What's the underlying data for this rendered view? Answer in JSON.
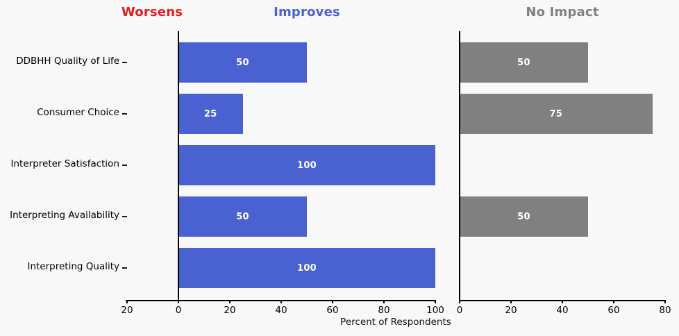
{
  "chart_data": {
    "type": "bar",
    "orientation": "horizontal",
    "xlabel": "Percent of Respondents",
    "background": "#f8f8f8",
    "bar_label_color": "#ffffff",
    "categories": [
      "DDBHH Quality of Life",
      "Consumer Choice",
      "Interpreter Satisfaction",
      "Interpreting Availability",
      "Interpreting Quality"
    ],
    "panels": [
      {
        "name": "change-panel",
        "headers": [
          {
            "label": "Worsens",
            "color": "#e01d1d"
          },
          {
            "label": "Improves",
            "color": "#4a61d2"
          }
        ],
        "axis_range": [
          -20,
          100
        ],
        "ticks": [
          -20,
          0,
          20,
          40,
          60,
          80,
          100
        ],
        "tick_labels": [
          "20",
          "0",
          "20",
          "40",
          "60",
          "80",
          "100"
        ]
      },
      {
        "name": "no-impact-panel",
        "headers": [
          {
            "label": "No Impact",
            "color": "#808080"
          }
        ],
        "axis_range": [
          0,
          80
        ],
        "ticks": [
          0,
          20,
          40,
          60,
          80
        ],
        "tick_labels": [
          "0",
          "20",
          "40",
          "60",
          "80"
        ]
      }
    ],
    "series": [
      {
        "name": "Improves",
        "panel": 0,
        "direction": "positive",
        "color": "#4a61d2",
        "values": [
          50,
          25,
          100,
          50,
          100
        ]
      },
      {
        "name": "Worsens",
        "panel": 0,
        "direction": "negative",
        "color": "#e01d1d",
        "values": [
          0,
          0,
          0,
          0,
          0
        ]
      },
      {
        "name": "No Impact",
        "panel": 1,
        "direction": "positive",
        "color": "#808080",
        "values": [
          50,
          75,
          0,
          50,
          0
        ]
      }
    ]
  }
}
